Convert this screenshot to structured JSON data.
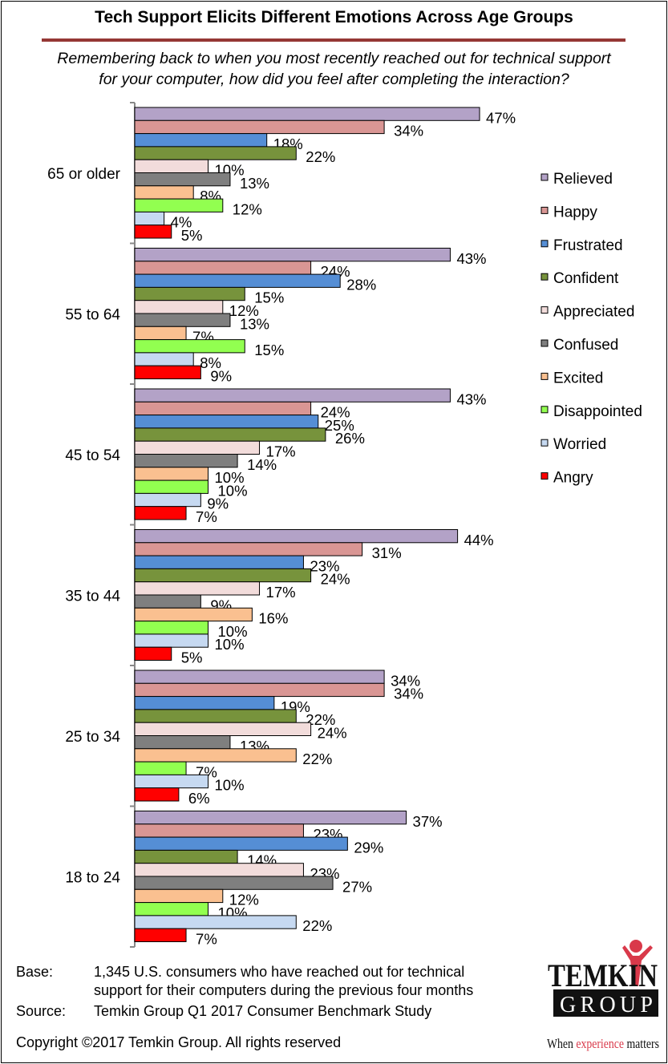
{
  "title": "Tech Support Elicits Different Emotions Across Age Groups",
  "subtitle_line1": "Remembering back to when you most recently reached out for technical support",
  "subtitle_line2": "for your computer, how did you feel after completing the interaction?",
  "chart_data": {
    "type": "bar",
    "orientation": "horizontal",
    "title": "Tech Support Elicits Different Emotions Across Age Groups",
    "categories": [
      "65 or older",
      "55 to 64",
      "45 to 54",
      "35 to 44",
      "25 to 34",
      "18 to 24"
    ],
    "value_format": "percent",
    "xlim": [
      0,
      50
    ],
    "grid": false,
    "legend_placement": "right",
    "series": [
      {
        "name": "Relieved",
        "color": "#B3A2C7",
        "values": [
          47,
          43,
          43,
          44,
          34,
          37
        ]
      },
      {
        "name": "Happy",
        "color": "#D99694",
        "values": [
          34,
          24,
          24,
          31,
          34,
          23
        ]
      },
      {
        "name": "Frustrated",
        "color": "#558ED5",
        "values": [
          18,
          28,
          25,
          23,
          19,
          29
        ]
      },
      {
        "name": "Confident",
        "color": "#77933C",
        "values": [
          22,
          15,
          26,
          24,
          22,
          14
        ]
      },
      {
        "name": "Appreciated",
        "color": "#F2DCDB",
        "values": [
          10,
          12,
          17,
          17,
          24,
          23
        ]
      },
      {
        "name": "Confused",
        "color": "#7F7F7F",
        "values": [
          13,
          13,
          14,
          9,
          13,
          27
        ]
      },
      {
        "name": "Excited",
        "color": "#FAC090",
        "values": [
          8,
          7,
          10,
          16,
          22,
          12
        ]
      },
      {
        "name": "Disappointed",
        "color": "#92FF50",
        "values": [
          12,
          15,
          10,
          10,
          7,
          10
        ]
      },
      {
        "name": "Worried",
        "color": "#C6D9F1",
        "values": [
          4,
          8,
          9,
          10,
          10,
          22
        ]
      },
      {
        "name": "Angry",
        "color": "#FF0000",
        "values": [
          5,
          9,
          7,
          5,
          6,
          7
        ]
      }
    ]
  },
  "footer": {
    "base_label": "Base:",
    "base_line1": "1,345 U.S. consumers who have reached out for technical",
    "base_line2": "support for their computers during the previous four months",
    "source_label": "Source:",
    "source_text": "Temkin Group Q1 2017 Consumer Benchmark Study",
    "copyright": "Copyright ©2017 Temkin Group. All rights reserved"
  },
  "logo": {
    "word1": "TEMKIN",
    "word2": "GROUP",
    "tagline_pre": "When ",
    "tagline_accent": "experience",
    "tagline_post": " matters",
    "accent_color": "#D9394A"
  }
}
